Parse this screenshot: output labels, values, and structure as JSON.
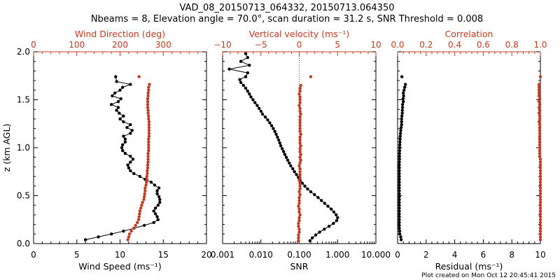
{
  "title_line1": "VAD_08_20150713_064332, 20150713.064350",
  "title_line2": "Nbeams = 8, Elevation angle = 70.0°, scan duration = 31.2 s, SNR Threshold = 0.008",
  "footer": "Plot created on Mon Oct 12 20:45:41 2015",
  "colors": {
    "primary": "#000000",
    "secondary": "#c23a1e"
  },
  "chart_data": [
    {
      "type": "scatter",
      "panel": "wind",
      "ylabel": "z (km AGL)",
      "ylim": [
        0,
        2.0
      ],
      "yticks": [
        "0.0",
        "0.5",
        "1.0",
        "1.5",
        "2.0"
      ],
      "ytick_values": [
        0,
        0.5,
        1.0,
        1.5,
        2.0
      ],
      "bottom_axis": {
        "label": "Wind Speed (ms⁻¹)",
        "lim": [
          0,
          20
        ],
        "ticks": [
          "0",
          "5",
          "10",
          "15",
          "20"
        ],
        "tick_values": [
          0,
          5,
          10,
          15,
          20
        ],
        "color": "#000000"
      },
      "top_axis": {
        "label": "Wind Direction (deg)",
        "lim": [
          0,
          400
        ],
        "ticks": [
          "0",
          "100",
          "200",
          "300"
        ],
        "tick_values": [
          0,
          100,
          200,
          300
        ],
        "color": "#c23a1e"
      },
      "series": [
        {
          "name": "Wind Speed",
          "axis": "bottom",
          "color": "#000000",
          "line": true,
          "z": [
            0.04,
            0.07,
            0.1,
            0.13,
            0.16,
            0.19,
            0.22,
            0.25,
            0.28,
            0.31,
            0.34,
            0.37,
            0.4,
            0.43,
            0.46,
            0.49,
            0.52,
            0.55,
            0.58,
            0.61,
            0.64,
            0.67,
            0.7,
            0.73,
            0.76,
            0.79,
            0.82,
            0.85,
            0.88,
            0.91,
            0.94,
            0.97,
            1.0,
            1.03,
            1.06,
            1.09,
            1.12,
            1.15,
            1.18,
            1.21,
            1.24,
            1.27,
            1.3,
            1.33,
            1.36,
            1.39,
            1.42,
            1.45,
            1.48,
            1.51,
            1.54,
            1.57,
            1.6,
            1.63,
            1.66,
            1.69,
            1.74
          ],
          "value": [
            6.0,
            7.5,
            9.0,
            10.4,
            11.6,
            12.8,
            13.9,
            14.4,
            14.3,
            14.1,
            13.9,
            14.1,
            14.4,
            14.6,
            14.6,
            14.5,
            14.3,
            14.3,
            14.5,
            14.0,
            13.6,
            12.9,
            12.3,
            11.6,
            11.2,
            11.0,
            10.9,
            11.2,
            11.5,
            11.2,
            10.6,
            10.3,
            10.2,
            10.3,
            10.6,
            10.6,
            10.4,
            11.2,
            11.4,
            10.8,
            11.2,
            10.4,
            10.0,
            10.4,
            9.9,
            9.6,
            9.8,
            9.0,
            9.8,
            10.1,
            9.1,
            9.4,
            10.0,
            10.3,
            11.2,
            9.6,
            9.5
          ]
        },
        {
          "name": "Wind Direction",
          "axis": "top",
          "color": "#c23a1e",
          "line": false,
          "z": [
            0.04,
            0.07,
            0.1,
            0.13,
            0.16,
            0.19,
            0.22,
            0.25,
            0.28,
            0.31,
            0.34,
            0.37,
            0.4,
            0.43,
            0.46,
            0.49,
            0.52,
            0.55,
            0.58,
            0.61,
            0.64,
            0.67,
            0.7,
            0.73,
            0.76,
            0.79,
            0.82,
            0.85,
            0.88,
            0.91,
            0.94,
            0.97,
            1.0,
            1.03,
            1.06,
            1.09,
            1.12,
            1.15,
            1.18,
            1.21,
            1.24,
            1.27,
            1.3,
            1.33,
            1.36,
            1.39,
            1.42,
            1.45,
            1.48,
            1.51,
            1.54,
            1.57,
            1.6,
            1.63,
            1.66,
            1.74
          ],
          "value": [
            218,
            220,
            222,
            226,
            232,
            236,
            240,
            243,
            244,
            245,
            246,
            248,
            250,
            252,
            255,
            256,
            257,
            258,
            258,
            260,
            261,
            262,
            262,
            263,
            263,
            264,
            264,
            265,
            265,
            265,
            265,
            266,
            266,
            266,
            266,
            266,
            267,
            267,
            267,
            267,
            267,
            267,
            266,
            266,
            265,
            265,
            264,
            264,
            264,
            264,
            265,
            265,
            266,
            266,
            268,
            244
          ]
        }
      ]
    },
    {
      "type": "scatter",
      "panel": "velocity",
      "ylim": [
        0,
        2.0
      ],
      "bottom_axis": {
        "label": "SNR",
        "lim": [
          0.001,
          10.0
        ],
        "log": true,
        "ticks": [
          "0.001",
          "0.010",
          "0.100",
          "1.000",
          "10.000"
        ],
        "tick_values": [
          0.001,
          0.01,
          0.1,
          1.0,
          10.0
        ],
        "color": "#000000"
      },
      "top_axis": {
        "label": "Vertical velocity (ms⁻¹)",
        "lim": [
          -10,
          10
        ],
        "ticks": [
          "−10",
          "−5",
          "0",
          "5",
          "10"
        ],
        "tick_values": [
          -10,
          -5,
          0,
          5,
          10
        ],
        "color": "#c23a1e"
      },
      "series": [
        {
          "name": "SNR",
          "axis": "bottom",
          "color": "#000000",
          "line": true,
          "z": [
            0.03,
            0.06,
            0.09,
            0.12,
            0.15,
            0.18,
            0.21,
            0.24,
            0.27,
            0.3,
            0.33,
            0.36,
            0.39,
            0.42,
            0.45,
            0.48,
            0.51,
            0.54,
            0.57,
            0.6,
            0.63,
            0.66,
            0.69,
            0.72,
            0.75,
            0.78,
            0.81,
            0.84,
            0.87,
            0.9,
            0.93,
            0.96,
            0.99,
            1.02,
            1.05,
            1.08,
            1.11,
            1.14,
            1.17,
            1.2,
            1.23,
            1.26,
            1.29,
            1.32,
            1.35,
            1.38,
            1.41,
            1.44,
            1.47,
            1.5,
            1.53,
            1.56,
            1.59,
            1.62,
            1.65,
            1.68,
            1.71,
            1.74,
            1.78,
            1.82,
            1.86,
            1.9,
            1.94,
            1.98
          ],
          "value": [
            0.19,
            0.22,
            0.27,
            0.34,
            0.45,
            0.6,
            0.78,
            0.95,
            1.0,
            0.92,
            0.8,
            0.68,
            0.56,
            0.46,
            0.38,
            0.31,
            0.25,
            0.2,
            0.165,
            0.14,
            0.12,
            0.105,
            0.095,
            0.085,
            0.075,
            0.068,
            0.06,
            0.055,
            0.05,
            0.046,
            0.042,
            0.039,
            0.036,
            0.033,
            0.031,
            0.029,
            0.027,
            0.025,
            0.023,
            0.021,
            0.019,
            0.017,
            0.015,
            0.013,
            0.011,
            0.01,
            0.009,
            0.008,
            0.007,
            0.0062,
            0.0055,
            0.005,
            0.0045,
            0.004,
            0.0035,
            0.003,
            0.0028,
            0.004,
            0.0045,
            0.0015,
            0.005,
            0.003,
            0.0045,
            0.004
          ]
        },
        {
          "name": "Vertical velocity",
          "axis": "top",
          "color": "#c23a1e",
          "line": false,
          "z": [
            0.03,
            0.06,
            0.09,
            0.12,
            0.15,
            0.18,
            0.21,
            0.24,
            0.27,
            0.3,
            0.33,
            0.36,
            0.39,
            0.42,
            0.45,
            0.48,
            0.51,
            0.54,
            0.57,
            0.6,
            0.63,
            0.66,
            0.69,
            0.72,
            0.75,
            0.78,
            0.81,
            0.84,
            0.87,
            0.9,
            0.93,
            0.96,
            0.99,
            1.02,
            1.05,
            1.08,
            1.11,
            1.14,
            1.17,
            1.2,
            1.23,
            1.26,
            1.29,
            1.32,
            1.35,
            1.38,
            1.41,
            1.44,
            1.47,
            1.5,
            1.53,
            1.56,
            1.59,
            1.62,
            1.65,
            1.74
          ],
          "value": [
            -0.1,
            -0.1,
            -0.1,
            0.0,
            0.0,
            -0.1,
            -0.1,
            0.0,
            0.0,
            0.1,
            0.0,
            0.0,
            -0.1,
            0.0,
            0.0,
            0.0,
            0.1,
            0.0,
            0.1,
            0.1,
            0.1,
            0.0,
            0.1,
            0.1,
            0.1,
            0.1,
            0.0,
            0.1,
            0.2,
            0.1,
            0.2,
            0.1,
            0.1,
            0.2,
            0.1,
            0.1,
            0.1,
            0.2,
            0.1,
            0.1,
            0.1,
            0.1,
            0.1,
            0.1,
            0.2,
            0.1,
            0.1,
            0.0,
            0.1,
            0.1,
            0.1,
            0.0,
            0.1,
            0.1,
            0.2,
            1.5
          ]
        }
      ]
    },
    {
      "type": "scatter",
      "panel": "quality",
      "ylim": [
        0,
        2.0
      ],
      "bottom_axis": {
        "label": "Residual (ms⁻¹)",
        "lim": [
          0,
          10
        ],
        "ticks": [
          "0",
          "2",
          "4",
          "6",
          "8",
          "10"
        ],
        "tick_values": [
          0,
          2,
          4,
          6,
          8,
          10
        ],
        "color": "#000000"
      },
      "top_axis": {
        "label": "Correlation",
        "lim": [
          0.0,
          1.0
        ],
        "ticks": [
          "0.0",
          "0.2",
          "0.4",
          "0.6",
          "0.8",
          "1.0"
        ],
        "tick_values": [
          0.0,
          0.2,
          0.4,
          0.6,
          0.8,
          1.0
        ],
        "color": "#c23a1e"
      },
      "series": [
        {
          "name": "Residual",
          "axis": "bottom",
          "color": "#000000",
          "line": false,
          "z": [
            0.04,
            0.07,
            0.1,
            0.13,
            0.16,
            0.19,
            0.22,
            0.25,
            0.28,
            0.31,
            0.34,
            0.37,
            0.4,
            0.43,
            0.46,
            0.49,
            0.52,
            0.55,
            0.58,
            0.61,
            0.64,
            0.67,
            0.7,
            0.73,
            0.76,
            0.79,
            0.82,
            0.85,
            0.88,
            0.91,
            0.94,
            0.97,
            1.0,
            1.03,
            1.06,
            1.09,
            1.12,
            1.15,
            1.18,
            1.21,
            1.24,
            1.27,
            1.3,
            1.33,
            1.36,
            1.39,
            1.42,
            1.45,
            1.48,
            1.51,
            1.54,
            1.57,
            1.6,
            1.63,
            1.66,
            1.74
          ],
          "value": [
            0.25,
            0.22,
            0.15,
            0.14,
            0.12,
            0.12,
            0.12,
            0.12,
            0.12,
            0.12,
            0.12,
            0.12,
            0.12,
            0.12,
            0.12,
            0.12,
            0.12,
            0.12,
            0.12,
            0.12,
            0.12,
            0.12,
            0.12,
            0.12,
            0.12,
            0.12,
            0.12,
            0.12,
            0.13,
            0.13,
            0.13,
            0.14,
            0.14,
            0.15,
            0.16,
            0.17,
            0.18,
            0.2,
            0.22,
            0.25,
            0.28,
            0.28,
            0.28,
            0.3,
            0.33,
            0.33,
            0.35,
            0.35,
            0.4,
            0.38,
            0.42,
            0.4,
            0.45,
            0.5,
            0.55,
            0.3
          ]
        },
        {
          "name": "Correlation",
          "axis": "top",
          "color": "#c23a1e",
          "line": false,
          "z": [
            0.04,
            0.07,
            0.1,
            0.13,
            0.16,
            0.19,
            0.22,
            0.25,
            0.28,
            0.31,
            0.34,
            0.37,
            0.4,
            0.43,
            0.46,
            0.49,
            0.52,
            0.55,
            0.58,
            0.61,
            0.64,
            0.67,
            0.7,
            0.73,
            0.76,
            0.79,
            0.82,
            0.85,
            0.88,
            0.91,
            0.94,
            0.97,
            1.0,
            1.03,
            1.06,
            1.09,
            1.12,
            1.15,
            1.18,
            1.21,
            1.24,
            1.27,
            1.3,
            1.33,
            1.36,
            1.39,
            1.42,
            1.45,
            1.48,
            1.51,
            1.54,
            1.57,
            1.6,
            1.63,
            1.66,
            1.74
          ],
          "value": [
            1.0,
            1.0,
            1.0,
            1.0,
            1.0,
            1.0,
            1.0,
            1.0,
            1.0,
            1.0,
            1.0,
            1.0,
            1.0,
            1.0,
            1.0,
            1.0,
            1.0,
            1.0,
            1.0,
            1.0,
            1.0,
            1.0,
            1.0,
            1.0,
            1.0,
            1.0,
            1.0,
            1.0,
            1.0,
            0.995,
            0.995,
            0.995,
            0.995,
            0.995,
            0.995,
            0.995,
            0.995,
            0.995,
            0.995,
            0.995,
            0.995,
            0.99,
            0.995,
            0.995,
            0.99,
            0.995,
            0.99,
            0.995,
            0.99,
            0.995,
            0.99,
            0.99,
            0.99,
            0.99,
            0.99,
            1.0
          ]
        }
      ]
    }
  ]
}
